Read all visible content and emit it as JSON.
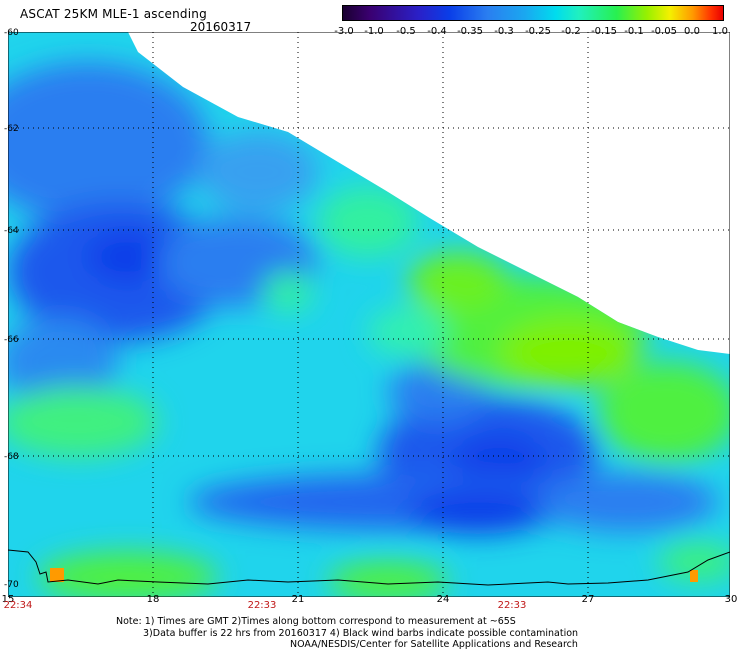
{
  "header": {
    "title": "ASCAT 25KM MLE-1 ascending",
    "date": "20160317"
  },
  "colorbar": {
    "labels": [
      "-3.0",
      "-1.0",
      "-0.5",
      "-0.4",
      "-0.35",
      "-0.3",
      "-0.25",
      "-0.2",
      "-0.15",
      "-0.1",
      "-0.05",
      "0.0",
      "1.0"
    ],
    "colors": [
      "#1a0030",
      "#3a0070",
      "#2a20c8",
      "#0a3ee8",
      "#2a7ef0",
      "#1aa8f0",
      "#00dcee",
      "#20f0c0",
      "#28f050",
      "#98f000",
      "#f4f000",
      "#ff9a00",
      "#e80000"
    ]
  },
  "map": {
    "lat_labels": [
      "-60",
      "-62",
      "-64",
      "-66",
      "-68",
      "-70"
    ],
    "lon_labels": [
      "15",
      "18",
      "21",
      "24",
      "27",
      "30"
    ],
    "time_labels": [
      "22:34",
      "22:33",
      "22:33"
    ]
  },
  "footer": {
    "note_line1": "Note: 1) Times are GMT 2)Times along bottom correspond to measurement at ~65S",
    "note_line2": "3)Data buffer is 22 hrs from 20160317 4) Black wind barbs indicate possible contamination",
    "credit": "NOAA/NESDIS/Center for Satellite Applications and Research"
  }
}
